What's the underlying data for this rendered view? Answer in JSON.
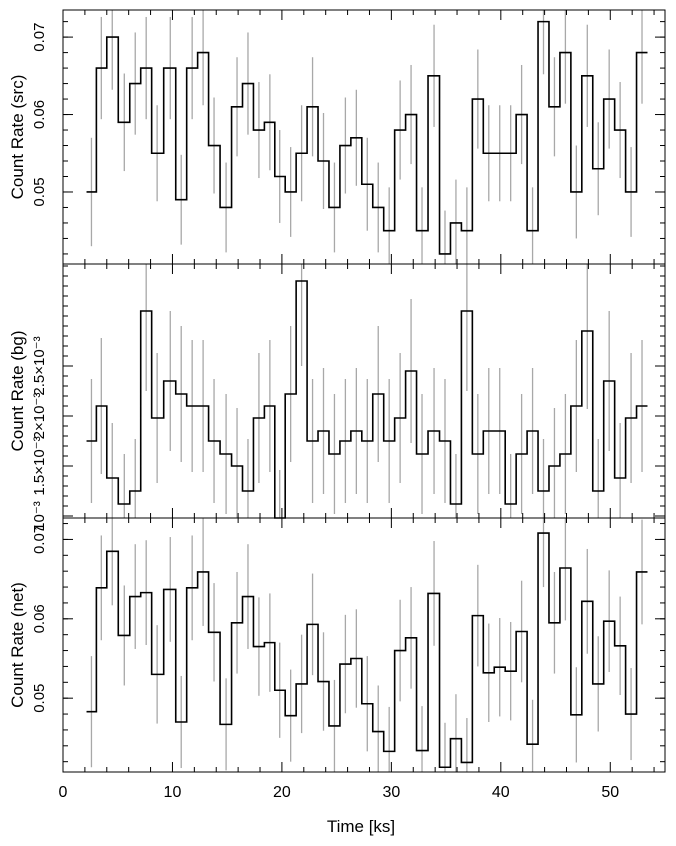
{
  "chart_data": [
    {
      "type": "line",
      "step": true,
      "panel": "src",
      "ylabel": "Count Rate (src)",
      "ylim": [
        0.0407,
        0.0735
      ],
      "yticks": [
        0.05,
        0.06,
        0.07
      ],
      "ytick_labels": [
        "0.05",
        "0.06",
        "0.07"
      ],
      "x": [
        2.6,
        3.5,
        4.5,
        5.6,
        6.6,
        7.6,
        8.6,
        9.8,
        10.8,
        11.8,
        12.8,
        13.8,
        14.9,
        15.9,
        16.9,
        17.9,
        18.9,
        19.8,
        20.8,
        21.8,
        22.8,
        23.8,
        24.8,
        25.8,
        26.8,
        27.8,
        28.8,
        29.8,
        30.8,
        31.8,
        32.8,
        33.9,
        34.9,
        35.9,
        36.9,
        37.9,
        38.9,
        39.9,
        40.9,
        41.9,
        42.9,
        43.9,
        44.9,
        45.9,
        46.9,
        47.9,
        48.9,
        49.9,
        50.9,
        51.9,
        52.9
      ],
      "y": [
        0.05,
        0.066,
        0.07,
        0.059,
        0.064,
        0.066,
        0.055,
        0.066,
        0.049,
        0.066,
        0.068,
        0.056,
        0.048,
        0.061,
        0.064,
        0.058,
        0.059,
        0.052,
        0.05,
        0.055,
        0.061,
        0.054,
        0.048,
        0.056,
        0.057,
        0.051,
        0.048,
        0.045,
        0.058,
        0.06,
        0.045,
        0.065,
        0.042,
        0.046,
        0.045,
        0.062,
        0.055,
        0.055,
        0.055,
        0.06,
        0.045,
        0.072,
        0.061,
        0.068,
        0.05,
        0.065,
        0.053,
        0.062,
        0.058,
        0.05,
        0.068
      ],
      "err": [
        0.007,
        0.0066,
        0.0068,
        0.0063,
        0.0066,
        0.0066,
        0.0062,
        0.0066,
        0.0058,
        0.0066,
        0.0068,
        0.0062,
        0.0058,
        0.0064,
        0.0066,
        0.0062,
        0.0062,
        0.006,
        0.0058,
        0.0062,
        0.0064,
        0.0062,
        0.0058,
        0.0062,
        0.0062,
        0.006,
        0.0058,
        0.0056,
        0.0064,
        0.0064,
        0.0056,
        0.0066,
        0.0056,
        0.0056,
        0.0056,
        0.0064,
        0.0062,
        0.0062,
        0.0062,
        0.0064,
        0.0056,
        0.0068,
        0.0064,
        0.0066,
        0.006,
        0.0066,
        0.006,
        0.0064,
        0.0062,
        0.0058,
        0.0066
      ]
    },
    {
      "type": "line",
      "step": true,
      "panel": "bg",
      "ylabel": "Count Rate (bg)",
      "ylim": [
        0.00098,
        0.00352
      ],
      "yticks": [
        0.001,
        0.0015,
        0.002,
        0.0025
      ],
      "ytick_labels": [
        "10⁻³",
        "1.5×10⁻³",
        "2×10⁻³",
        "2.5×10⁻³"
      ],
      "x": [
        2.6,
        3.5,
        4.5,
        5.6,
        6.6,
        7.6,
        8.6,
        9.8,
        10.8,
        11.8,
        12.8,
        13.8,
        14.9,
        15.9,
        16.9,
        17.9,
        18.9,
        19.8,
        20.8,
        21.8,
        22.8,
        23.8,
        24.8,
        25.8,
        26.8,
        27.8,
        28.8,
        29.8,
        30.8,
        31.8,
        32.8,
        33.9,
        34.9,
        35.9,
        36.9,
        37.9,
        38.9,
        39.9,
        40.9,
        41.9,
        42.9,
        43.9,
        44.9,
        45.9,
        46.9,
        47.9,
        48.9,
        49.9,
        50.9,
        51.9,
        52.9
      ],
      "y": [
        0.00175,
        0.0021,
        0.00138,
        0.00112,
        0.00125,
        0.00305,
        0.00198,
        0.00235,
        0.00222,
        0.0021,
        0.0021,
        0.00175,
        0.00162,
        0.0015,
        0.00125,
        0.00198,
        0.0021,
        0.00098,
        0.00222,
        0.00335,
        0.00175,
        0.00185,
        0.00162,
        0.00175,
        0.00185,
        0.00175,
        0.00222,
        0.00175,
        0.00198,
        0.00245,
        0.00162,
        0.00185,
        0.00175,
        0.00112,
        0.00305,
        0.00162,
        0.00185,
        0.00185,
        0.00112,
        0.00162,
        0.00185,
        0.00125,
        0.0015,
        0.00162,
        0.0021,
        0.00285,
        0.00125,
        0.00235,
        0.00138,
        0.00198,
        0.0021
      ],
      "err": [
        0.00062,
        0.00068,
        0.00055,
        0.0005,
        0.00052,
        0.0008,
        0.00065,
        0.0007,
        0.00068,
        0.00066,
        0.00066,
        0.00062,
        0.0006,
        0.00058,
        0.00052,
        0.00065,
        0.00066,
        0.00048,
        0.00068,
        0.00085,
        0.00062,
        0.00063,
        0.0006,
        0.00062,
        0.00063,
        0.00062,
        0.00068,
        0.00062,
        0.00065,
        0.00072,
        0.0006,
        0.00063,
        0.00062,
        0.0005,
        0.0008,
        0.0006,
        0.00063,
        0.00063,
        0.0005,
        0.0006,
        0.00063,
        0.00052,
        0.00058,
        0.0006,
        0.00066,
        0.00078,
        0.00052,
        0.0007,
        0.00055,
        0.00065,
        0.00066
      ]
    },
    {
      "type": "line",
      "step": true,
      "panel": "net",
      "ylabel": "Count Rate (net)",
      "ylim": [
        0.0407,
        0.0727
      ],
      "yticks": [
        0.05,
        0.06,
        0.07
      ],
      "ytick_labels": [
        "0.05",
        "0.06",
        "0.07"
      ],
      "x": [
        2.6,
        3.5,
        4.5,
        5.6,
        6.6,
        7.6,
        8.6,
        9.8,
        10.8,
        11.8,
        12.8,
        13.8,
        14.9,
        15.9,
        16.9,
        17.9,
        18.9,
        19.8,
        20.8,
        21.8,
        22.8,
        23.8,
        24.8,
        25.8,
        26.8,
        27.8,
        28.8,
        29.8,
        30.8,
        31.8,
        32.8,
        33.9,
        34.9,
        35.9,
        36.9,
        37.9,
        38.9,
        39.9,
        40.9,
        41.9,
        42.9,
        43.9,
        44.9,
        45.9,
        46.9,
        47.9,
        48.9,
        49.9,
        50.9,
        51.9,
        52.9
      ],
      "y": [
        0.0483,
        0.0639,
        0.0685,
        0.0579,
        0.0628,
        0.0633,
        0.053,
        0.0637,
        0.047,
        0.0639,
        0.0659,
        0.0583,
        0.0467,
        0.0595,
        0.0628,
        0.0565,
        0.057,
        0.051,
        0.0478,
        0.0518,
        0.0593,
        0.0521,
        0.0465,
        0.0543,
        0.055,
        0.0493,
        0.0458,
        0.0433,
        0.056,
        0.0576,
        0.0434,
        0.0632,
        0.0413,
        0.0449,
        0.0419,
        0.0604,
        0.0532,
        0.0539,
        0.0534,
        0.0584,
        0.0442,
        0.0708,
        0.0595,
        0.0664,
        0.0479,
        0.0622,
        0.0518,
        0.0597,
        0.0566,
        0.048,
        0.0659
      ],
      "err": [
        0.007,
        0.0066,
        0.0068,
        0.0063,
        0.0066,
        0.0066,
        0.0062,
        0.0066,
        0.0058,
        0.0066,
        0.0068,
        0.0062,
        0.0058,
        0.0064,
        0.0066,
        0.0062,
        0.0062,
        0.006,
        0.0058,
        0.0062,
        0.0064,
        0.0062,
        0.0058,
        0.0062,
        0.0062,
        0.006,
        0.0058,
        0.0056,
        0.0064,
        0.0064,
        0.0056,
        0.0066,
        0.0056,
        0.0056,
        0.0056,
        0.0064,
        0.0062,
        0.0062,
        0.0062,
        0.0064,
        0.0056,
        0.0068,
        0.0064,
        0.0066,
        0.006,
        0.0066,
        0.006,
        0.0064,
        0.0062,
        0.0058,
        0.0066
      ]
    }
  ],
  "x_axis": {
    "label": "Time [ks]",
    "xlim": [
      0,
      55
    ],
    "ticks": [
      0,
      10,
      20,
      30,
      40,
      50
    ],
    "tick_labels": [
      "0",
      "10",
      "20",
      "30",
      "40",
      "50"
    ]
  },
  "colors": {
    "step_line": "#000000",
    "error_bar": "#a8a8a8",
    "frame": "#000000"
  }
}
